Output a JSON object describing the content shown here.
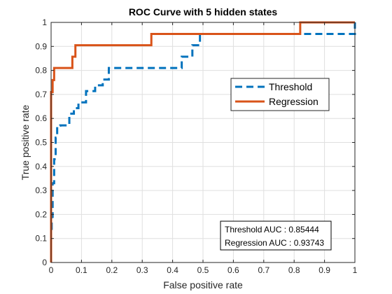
{
  "chart_data": {
    "type": "line",
    "title": "ROC Curve with 5 hidden states",
    "xlabel": "False positive rate",
    "ylabel": "True positive rate",
    "xlim": [
      0,
      1
    ],
    "ylim": [
      0,
      1
    ],
    "xticks": [
      "0",
      "0.1",
      "0.2",
      "0.3",
      "0.4",
      "0.5",
      "0.6",
      "0.7",
      "0.8",
      "0.9",
      "1"
    ],
    "yticks": [
      "0",
      "0.1",
      "0.2",
      "0.3",
      "0.4",
      "0.5",
      "0.6",
      "0.7",
      "0.8",
      "0.9",
      "1"
    ],
    "grid": true,
    "legend_position": "right",
    "series": [
      {
        "name": "Threshold",
        "color": "#0072BD",
        "line_style": "dashed",
        "x": [
          0,
          0,
          0.002,
          0.002,
          0.005,
          0.005,
          0.01,
          0.01,
          0.015,
          0.015,
          0.02,
          0.02,
          0.03,
          0.03,
          0.06,
          0.06,
          0.075,
          0.075,
          0.09,
          0.09,
          0.115,
          0.115,
          0.145,
          0.145,
          0.17,
          0.17,
          0.19,
          0.19,
          0.43,
          0.43,
          0.465,
          0.465,
          0.49,
          0.49,
          1.0,
          1.0
        ],
        "y": [
          0,
          0.14,
          0.14,
          0.19,
          0.19,
          0.33,
          0.33,
          0.43,
          0.43,
          0.52,
          0.52,
          0.57,
          0.57,
          0.571,
          0.571,
          0.62,
          0.62,
          0.643,
          0.643,
          0.667,
          0.667,
          0.714,
          0.714,
          0.738,
          0.738,
          0.762,
          0.762,
          0.81,
          0.81,
          0.857,
          0.857,
          0.905,
          0.905,
          0.952,
          0.952,
          1.0
        ]
      },
      {
        "name": "Regression",
        "color": "#D95319",
        "line_style": "solid",
        "x": [
          0,
          0,
          0.005,
          0.005,
          0.01,
          0.01,
          0.07,
          0.07,
          0.08,
          0.08,
          0.33,
          0.33,
          0.82,
          0.82,
          1.0
        ],
        "y": [
          0,
          0.71,
          0.71,
          0.76,
          0.76,
          0.81,
          0.81,
          0.857,
          0.857,
          0.905,
          0.905,
          0.952,
          0.952,
          1.0,
          1.0
        ]
      }
    ],
    "annotation": {
      "lines": [
        "Threshold AUC : 0.85444",
        "Regression AUC : 0.93743"
      ]
    }
  }
}
